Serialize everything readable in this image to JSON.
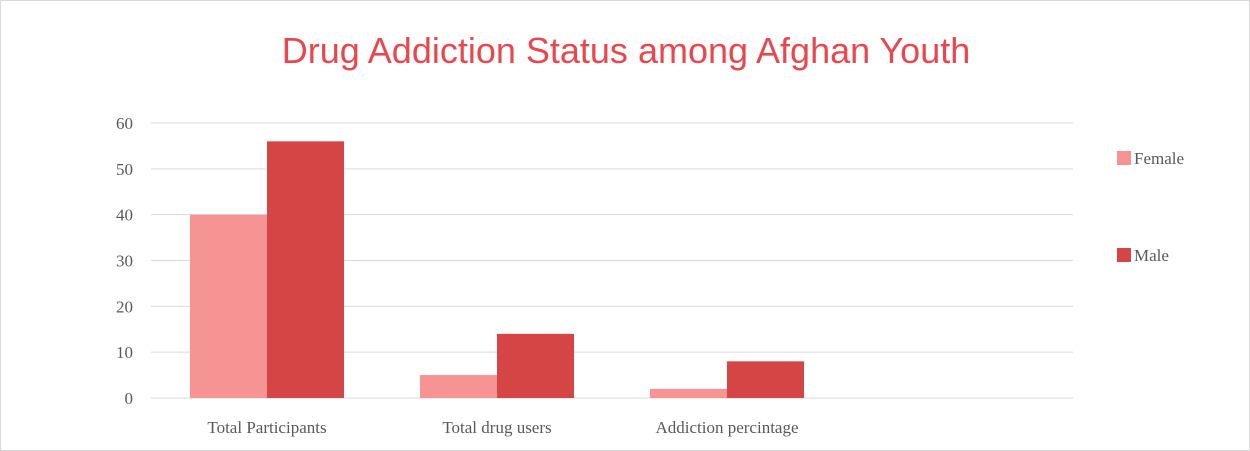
{
  "chart_data": {
    "type": "bar",
    "title": "Drug Addiction Status among Afghan Youth",
    "xlabel": "",
    "ylabel": "",
    "categories": [
      "Total Participants",
      "Total drug users",
      "Addiction percintage"
    ],
    "series": [
      {
        "name": "Female",
        "values": [
          40,
          5,
          2
        ],
        "color": "#f59492"
      },
      {
        "name": "Male",
        "values": [
          56,
          14,
          8
        ],
        "color": "#d64545"
      }
    ],
    "ylim": [
      0,
      60
    ],
    "yticks": [
      0,
      10,
      20,
      30,
      40,
      50,
      60
    ],
    "grid": true,
    "legend_position": "right",
    "colors": {
      "title": "#e8484d",
      "grid": "#d9d9d9",
      "tick_text": "#595959"
    }
  }
}
